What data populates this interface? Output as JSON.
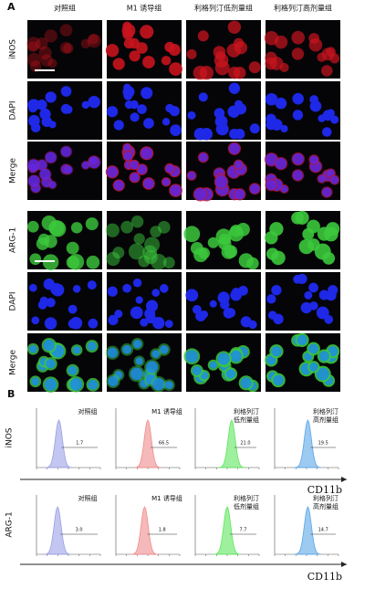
{
  "panel_a": {
    "label": "A",
    "columns": [
      "对照组",
      "M1 诱导组",
      "利格列汀低剂量组",
      "利格列汀高剂量组"
    ],
    "rows_top": [
      "iNOS",
      "DAPI",
      "Merge"
    ],
    "rows_bottom": [
      "ARG-1",
      "DAPI",
      "Merge"
    ]
  },
  "panel_b": {
    "label": "B",
    "x_axis": "CD11b",
    "rows": [
      {
        "label": "iNOS",
        "groups": [
          {
            "name": [
              "对照组"
            ],
            "percent": "1.7"
          },
          {
            "name": [
              "M1 诱导组"
            ],
            "percent": "66.5"
          },
          {
            "name": [
              "利格列汀",
              "低剂量组"
            ],
            "percent": "21.0"
          },
          {
            "name": [
              "利格列汀",
              "高剂量组"
            ],
            "percent": "19.5"
          }
        ]
      },
      {
        "label": "ARG-1",
        "groups": [
          {
            "name": [
              "对照组"
            ],
            "percent": "3.0"
          },
          {
            "name": [
              "M1 诱导组"
            ],
            "percent": "1.8"
          },
          {
            "name": [
              "利格列汀",
              "低剂量组"
            ],
            "percent": "7.7"
          },
          {
            "name": [
              "利格列汀",
              "高剂量组"
            ],
            "percent": "14.7"
          }
        ]
      }
    ]
  }
}
